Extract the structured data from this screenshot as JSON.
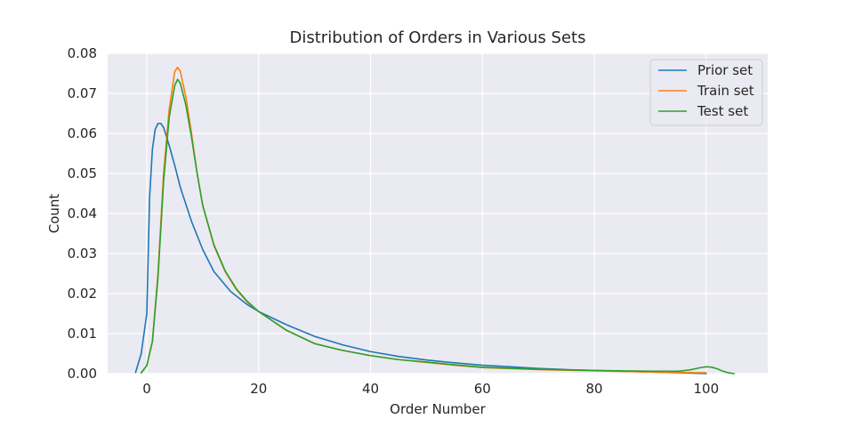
{
  "chart_data": {
    "type": "line",
    "title": "Distribution of Orders in Various Sets",
    "xlabel": "Order Number",
    "ylabel": "Count",
    "xlim": [
      -7,
      111
    ],
    "ylim": [
      0,
      0.08
    ],
    "xticks": [
      0,
      20,
      40,
      60,
      80,
      100
    ],
    "yticks": [
      0.0,
      0.01,
      0.02,
      0.03,
      0.04,
      0.05,
      0.06,
      0.07,
      0.08
    ],
    "xtick_labels": [
      "0",
      "20",
      "40",
      "60",
      "80",
      "100"
    ],
    "ytick_labels": [
      "0.00",
      "0.01",
      "0.02",
      "0.03",
      "0.04",
      "0.05",
      "0.06",
      "0.07",
      "0.08"
    ],
    "grid": true,
    "legend_position": "top-right",
    "series": [
      {
        "name": "Prior set",
        "color": "#1f77b4",
        "x": [
          -2,
          -1,
          0,
          0.5,
          1,
          1.5,
          2,
          2.5,
          3,
          4,
          5,
          6,
          8,
          10,
          12,
          15,
          18,
          20,
          25,
          30,
          35,
          40,
          45,
          50,
          55,
          60,
          65,
          70,
          75,
          80,
          85,
          90,
          95,
          100
        ],
        "y": [
          0.0003,
          0.005,
          0.015,
          0.044,
          0.056,
          0.061,
          0.0625,
          0.0625,
          0.0615,
          0.057,
          0.052,
          0.0465,
          0.038,
          0.031,
          0.0255,
          0.0205,
          0.0172,
          0.0155,
          0.0122,
          0.0093,
          0.0072,
          0.0055,
          0.0043,
          0.0034,
          0.0027,
          0.0021,
          0.0017,
          0.0013,
          0.001,
          0.0008,
          0.0006,
          0.0004,
          0.0002,
          0.0
        ]
      },
      {
        "name": "Train set",
        "color": "#ff7f0e",
        "x": [
          -1,
          0,
          1,
          2,
          3,
          4,
          5,
          5.5,
          6,
          7,
          8,
          9,
          10,
          12,
          14,
          16,
          18,
          20,
          25,
          30,
          35,
          40,
          45,
          50,
          55,
          60,
          70,
          80,
          90,
          95,
          100
        ],
        "y": [
          0.0002,
          0.002,
          0.008,
          0.025,
          0.05,
          0.066,
          0.0755,
          0.0765,
          0.0755,
          0.069,
          0.06,
          0.05,
          0.042,
          0.032,
          0.0255,
          0.021,
          0.0178,
          0.0155,
          0.0108,
          0.0075,
          0.0058,
          0.0045,
          0.0035,
          0.0028,
          0.0021,
          0.0015,
          0.001,
          0.0007,
          0.0004,
          0.0003,
          0.0002
        ]
      },
      {
        "name": "Test set",
        "color": "#2ca02c",
        "x": [
          -1,
          0,
          1,
          2,
          3,
          4,
          5,
          5.5,
          6,
          7,
          8,
          9,
          10,
          12,
          14,
          16,
          18,
          20,
          25,
          30,
          35,
          40,
          45,
          50,
          55,
          60,
          70,
          80,
          90,
          95,
          97,
          99,
          100,
          101,
          102,
          103,
          104,
          105
        ],
        "y": [
          0.0002,
          0.002,
          0.008,
          0.024,
          0.048,
          0.064,
          0.072,
          0.0735,
          0.0725,
          0.067,
          0.059,
          0.05,
          0.042,
          0.0322,
          0.0257,
          0.0212,
          0.018,
          0.0155,
          0.0108,
          0.0075,
          0.0058,
          0.0045,
          0.0035,
          0.0029,
          0.0022,
          0.0016,
          0.0011,
          0.0008,
          0.0006,
          0.0006,
          0.0009,
          0.0015,
          0.0017,
          0.0016,
          0.0012,
          0.0006,
          0.0002,
          0.0
        ]
      }
    ]
  }
}
